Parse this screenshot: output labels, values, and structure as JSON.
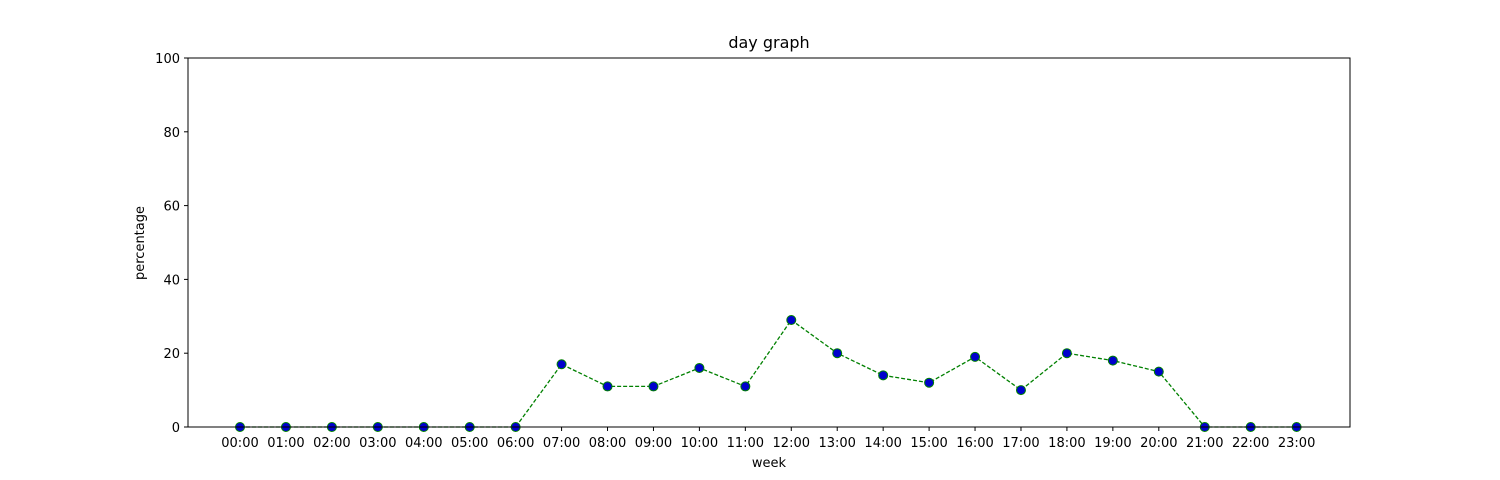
{
  "chart_data": {
    "type": "line",
    "title": "day graph",
    "xlabel": "week",
    "ylabel": "percentage",
    "categories": [
      "00:00",
      "01:00",
      "02:00",
      "03:00",
      "04:00",
      "05:00",
      "06:00",
      "07:00",
      "08:00",
      "09:00",
      "10:00",
      "11:00",
      "12:00",
      "13:00",
      "14:00",
      "15:00",
      "16:00",
      "17:00",
      "18:00",
      "19:00",
      "20:00",
      "21:00",
      "22:00",
      "23:00"
    ],
    "series": [
      {
        "values": [
          0,
          0,
          0,
          0,
          0,
          0,
          0,
          17,
          11,
          11,
          16,
          11,
          29,
          20,
          14,
          12,
          19,
          10,
          20,
          18,
          15,
          0,
          0,
          0
        ]
      }
    ],
    "ylim": [
      0,
      100
    ],
    "yticks": [
      0,
      20,
      40,
      60,
      80,
      100
    ],
    "grid": false,
    "line_style": "dashed",
    "colors": {
      "line": "#008000",
      "marker_fill": "#0000cc",
      "marker_edge": "#008000",
      "axes": "#000000"
    }
  }
}
